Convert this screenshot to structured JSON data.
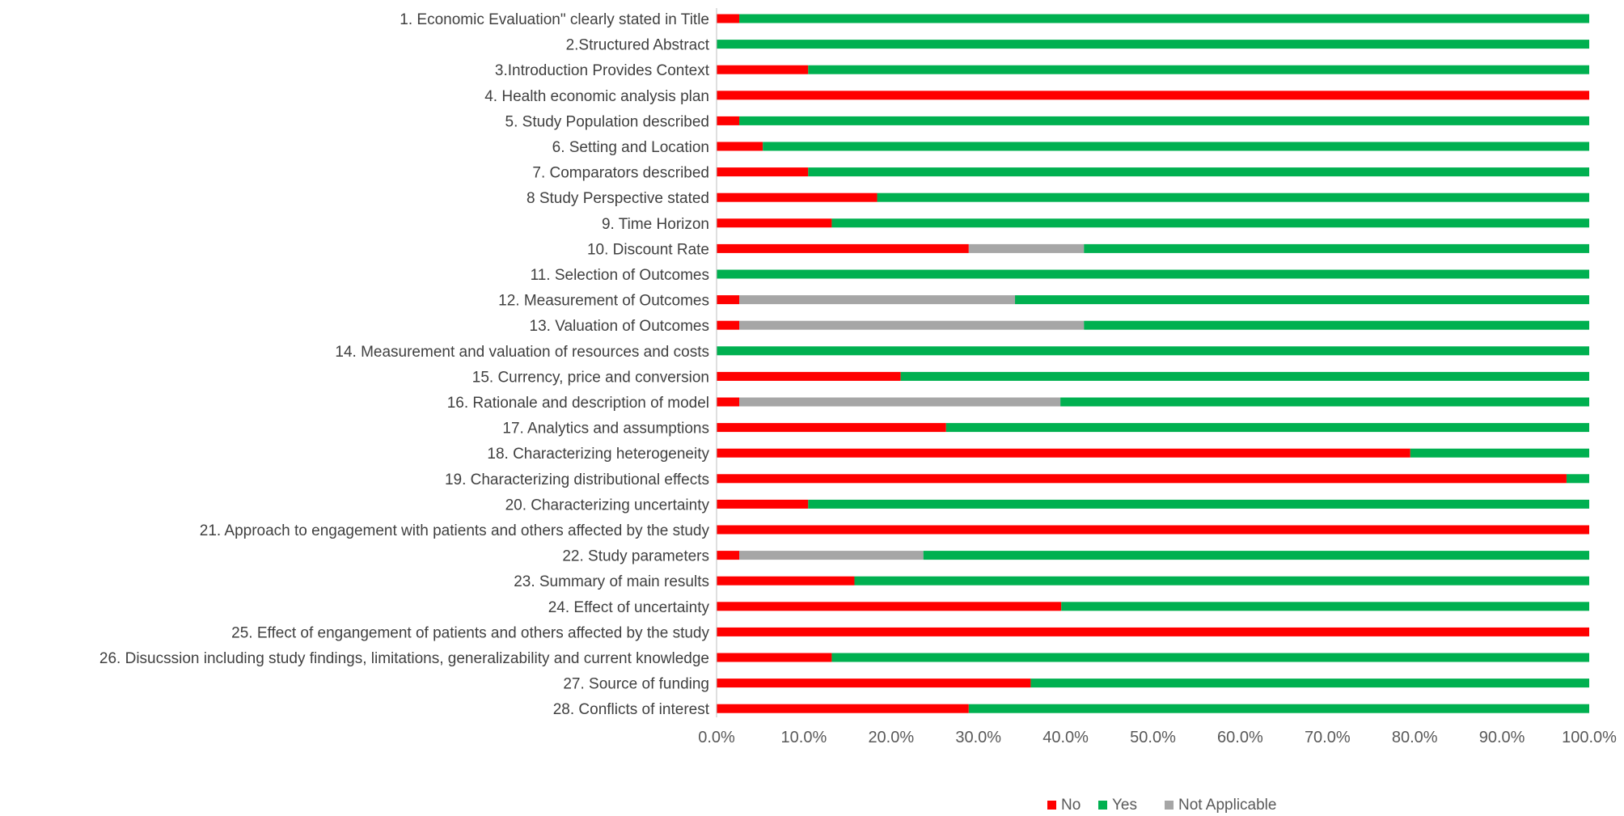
{
  "chart_data": {
    "type": "bar",
    "orientation": "horizontal",
    "stacked": true,
    "percent_stacked": true,
    "title": "",
    "xlabel": "",
    "ylabel": "",
    "xlim": [
      0,
      100
    ],
    "grid": false,
    "legend_position": "bottom",
    "x_ticks": [
      "0.0%",
      "10.0%",
      "20.0%",
      "30.0%",
      "40.0%",
      "50.0%",
      "60.0%",
      "70.0%",
      "80.0%",
      "90.0%",
      "100.0%"
    ],
    "categories": [
      "1. Economic Evaluation\" clearly stated in Title",
      "2.Structured Abstract",
      "3.Introduction Provides Context",
      "4. Health economic analysis plan",
      "5. Study Population described",
      "6. Setting and Location",
      "7. Comparators described",
      "8 Study Perspective stated",
      "9. Time Horizon",
      "10. Discount Rate",
      "11. Selection of Outcomes",
      "12. Measurement of Outcomes",
      "13. Valuation of Outcomes",
      "14. Measurement and valuation of resources and costs",
      "15. Currency, price and conversion",
      "16. Rationale and description of model",
      "17. Analytics and assumptions",
      "18. Characterizing heterogeneity",
      "19. Characterizing distributional effects",
      "20. Characterizing uncertainty",
      "21. Approach to engagement with patients and others affected by the study",
      "22. Study parameters",
      "23. Summary of main results",
      "24. Effect of uncertainty",
      "25. Effect of engangement of patients and others affected by the study",
      "26. Disucssion including study findings, limitations, generalizability and current knowledge",
      "27. Source of funding",
      "28. Conflicts of interest"
    ],
    "series": [
      {
        "name": "No",
        "color": "#ff0000",
        "values": [
          2.6,
          0,
          10.5,
          100,
          2.6,
          5.3,
          10.5,
          18.4,
          13.2,
          28.9,
          0,
          2.6,
          2.6,
          0,
          21.1,
          2.6,
          26.3,
          79.5,
          97.4,
          10.5,
          100,
          2.6,
          15.8,
          39.5,
          100,
          13.2,
          36.0,
          28.9
        ]
      },
      {
        "name": "Not Applicable",
        "color": "#a6a6a6",
        "values": [
          0,
          0,
          0,
          0,
          0,
          0,
          0,
          0,
          0,
          13.2,
          0,
          31.6,
          39.5,
          0,
          0,
          36.8,
          0,
          0,
          0,
          0,
          0,
          21.1,
          0,
          0,
          0,
          0,
          0,
          0
        ]
      },
      {
        "name": "Yes",
        "color": "#00b050",
        "values": [
          97.4,
          100,
          89.5,
          0,
          97.4,
          94.7,
          89.5,
          81.6,
          86.8,
          57.9,
          100,
          65.8,
          57.9,
          100,
          78.9,
          60.6,
          73.7,
          20.5,
          2.6,
          89.5,
          0,
          76.3,
          84.2,
          60.5,
          0,
          86.8,
          64.0,
          71.1
        ]
      }
    ],
    "legend": [
      "No",
      "Yes",
      "Not Applicable"
    ]
  }
}
